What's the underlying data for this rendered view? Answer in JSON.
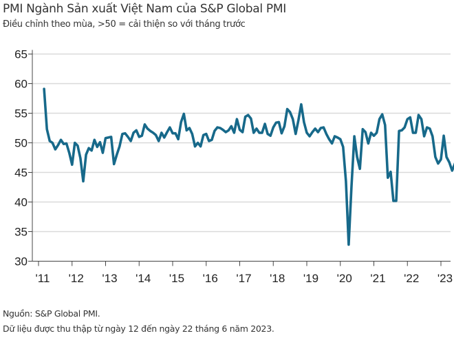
{
  "chart_data": {
    "type": "line",
    "title": "PMI Ngành Sản xuất Việt Nam của S&P Global PMI",
    "subtitle": "Điều chỉnh theo mùa, >50 = cải thiện so với tháng trước",
    "start_month": "2011-03",
    "end_month": "2023-06",
    "xlim": [
      2011,
      2023.5
    ],
    "ylim": [
      30,
      65
    ],
    "y_ticks": [
      "30",
      "35",
      "40",
      "45",
      "50",
      "55",
      "60",
      "65"
    ],
    "x_ticks": [
      "'11",
      "'12",
      "'13",
      "'14",
      "'15",
      "'16",
      "'17",
      "'18",
      "'19",
      "'20",
      "'21",
      "'22",
      "'23"
    ],
    "grid": "horizontal",
    "line_color": "#17698a",
    "values": [
      59.1,
      52.3,
      50.3,
      50.0,
      48.9,
      49.6,
      50.5,
      49.8,
      49.9,
      48.3,
      46.3,
      50.0,
      49.5,
      47.4,
      43.5,
      48.0,
      49.1,
      48.7,
      50.5,
      49.3,
      50.1,
      48.3,
      50.8,
      50.9,
      51.0,
      46.4,
      48.0,
      49.4,
      51.5,
      51.6,
      51.0,
      50.3,
      51.7,
      52.1,
      51.0,
      51.2,
      53.1,
      52.4,
      52.0,
      51.7,
      51.3,
      50.3,
      51.7,
      50.9,
      51.8,
      52.6,
      51.6,
      51.6,
      50.6,
      53.5,
      54.9,
      52.1,
      52.5,
      51.5,
      49.4,
      50.0,
      49.4,
      51.3,
      51.5,
      50.3,
      50.5,
      52.0,
      52.6,
      52.5,
      52.2,
      51.8,
      52.1,
      52.8,
      51.7,
      54.0,
      52.2,
      51.8,
      54.4,
      54.7,
      54.1,
      51.7,
      52.4,
      51.7,
      51.7,
      53.2,
      51.5,
      51.2,
      52.6,
      53.4,
      53.5,
      51.6,
      52.8,
      55.7,
      55.2,
      54.0,
      51.5,
      53.8,
      56.5,
      53.5,
      51.7,
      51.1,
      51.8,
      52.4,
      51.8,
      52.5,
      52.6,
      51.5,
      50.6,
      49.9,
      51.1,
      50.9,
      50.6,
      49.3,
      43.5,
      32.8,
      42.7,
      51.1,
      47.6,
      45.6,
      52.3,
      51.8,
      49.9,
      51.7,
      51.2,
      51.7,
      54.0,
      54.8,
      53.0,
      44.1,
      45.1,
      40.2,
      40.2,
      52.0,
      52.1,
      52.6,
      54.0,
      54.3,
      51.7,
      51.7,
      54.7,
      54.0,
      51.1,
      52.6,
      52.4,
      51.1,
      47.6,
      46.5,
      47.2,
      51.2,
      47.6,
      46.7,
      45.3,
      46.5
    ]
  },
  "notes": {
    "source": "Nguồn: S&P Global PMI.",
    "collection": "Dữ liệu được thu thập từ ngày 12 đến ngày 22 tháng 6 năm 2023."
  }
}
